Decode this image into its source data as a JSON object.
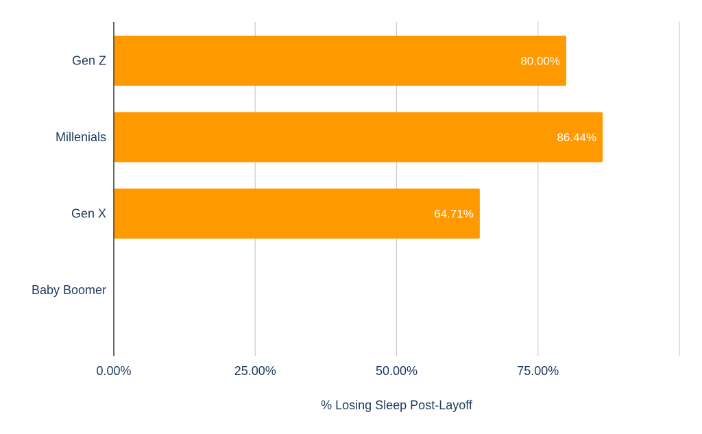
{
  "chart_data": {
    "type": "bar",
    "orientation": "horizontal",
    "title": "",
    "xlabel": "% Losing Sleep Post-Layoff",
    "ylabel": "",
    "categories": [
      "Gen Z",
      "Millenials",
      "Gen X",
      "Baby Boomer"
    ],
    "values": [
      80.0,
      86.44,
      64.71,
      null
    ],
    "data_labels": [
      "80.00%",
      "86.44%",
      "64.71%",
      ""
    ],
    "xlim": [
      0,
      100
    ],
    "x_ticks": [
      0,
      25,
      50,
      75,
      100
    ],
    "x_tick_labels": [
      "0.00%",
      "25.00%",
      "50.00%",
      "75.00%",
      ""
    ],
    "grid": true,
    "legend": "none",
    "bar_color": "#ff9900"
  }
}
